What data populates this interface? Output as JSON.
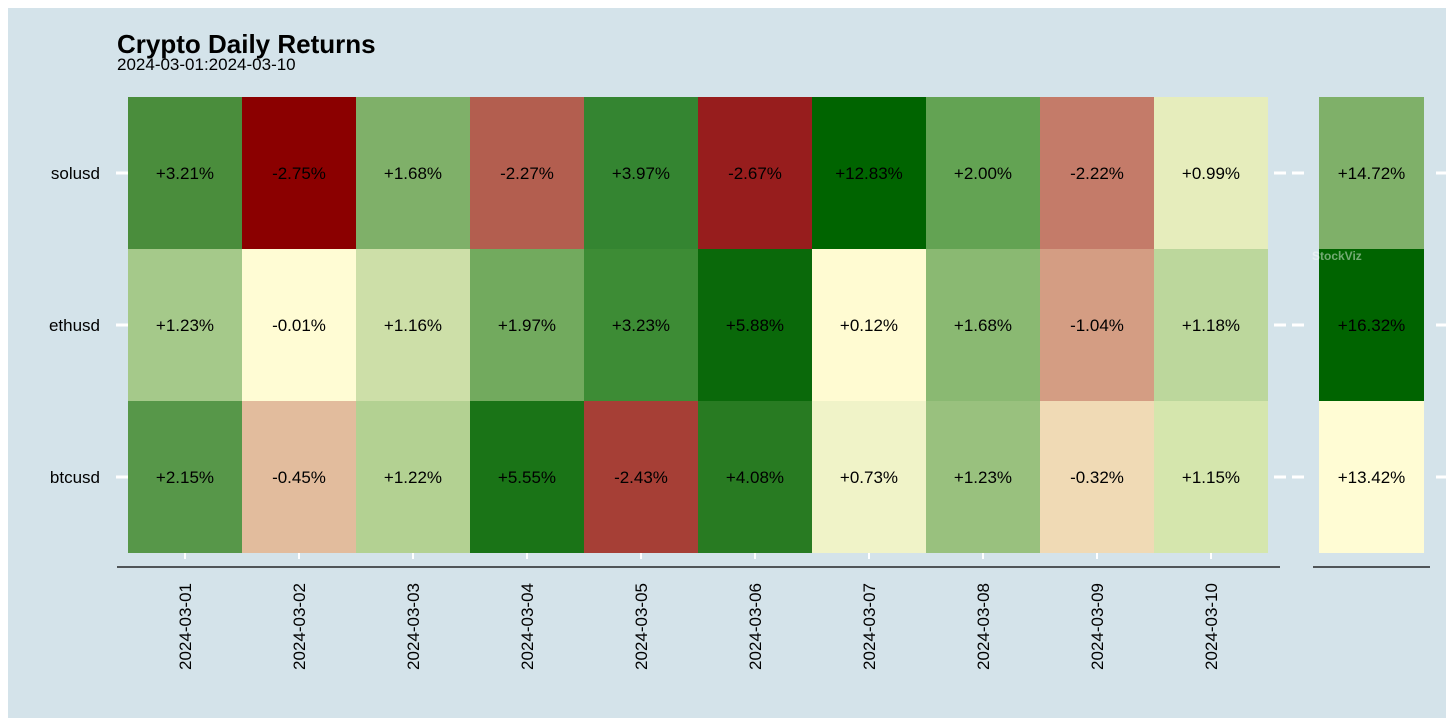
{
  "chart_data": {
    "type": "heatmap",
    "title": "Crypto Daily Returns",
    "subtitle": "2024-03-01:2024-03-10",
    "rows": [
      "solusd",
      "ethusd",
      "btcusd"
    ],
    "columns": [
      "2024-03-01",
      "2024-03-02",
      "2024-03-03",
      "2024-03-04",
      "2024-03-05",
      "2024-03-06",
      "2024-03-07",
      "2024-03-08",
      "2024-03-09",
      "2024-03-10"
    ],
    "values": [
      [
        3.21,
        -2.75,
        1.68,
        -2.27,
        3.97,
        -2.67,
        12.83,
        2.0,
        -2.22,
        0.99
      ],
      [
        1.23,
        -0.01,
        1.16,
        1.97,
        3.23,
        5.88,
        0.12,
        1.68,
        -1.04,
        1.18
      ],
      [
        2.15,
        -0.45,
        1.22,
        5.55,
        -2.43,
        4.08,
        0.73,
        1.23,
        -0.32,
        1.15
      ]
    ],
    "labels": [
      [
        "+3.21%",
        "-2.75%",
        "+1.68%",
        "-2.27%",
        "+3.97%",
        "-2.67%",
        "+12.83%",
        "+2.00%",
        "-2.22%",
        "+0.99%"
      ],
      [
        "+1.23%",
        "-0.01%",
        "+1.16%",
        "+1.97%",
        "+3.23%",
        "+5.88%",
        "+0.12%",
        "+1.68%",
        "-1.04%",
        "+1.18%"
      ],
      [
        "+2.15%",
        "-0.45%",
        "+1.22%",
        "+5.55%",
        "-2.43%",
        "+4.08%",
        "+0.73%",
        "+1.23%",
        "-0.32%",
        "+1.15%"
      ]
    ],
    "colors": [
      [
        "#4a8d3c",
        "#8b0000",
        "#7fb069",
        "#b35e4f",
        "#348531",
        "#971d1d",
        "#006400",
        "#63a353",
        "#c47b69",
        "#e6edbc"
      ],
      [
        "#a5c98a",
        "#fffcd4",
        "#cddfa8",
        "#72aa5e",
        "#3d8c35",
        "#0a690a",
        "#fffbd2",
        "#8ab972",
        "#d49d83",
        "#bcd79c"
      ],
      [
        "#579749",
        "#e2bc9d",
        "#b3d192",
        "#1a7417",
        "#a63f36",
        "#287b22",
        "#f0f3c8",
        "#99c17e",
        "#f0dab5",
        "#d5e6ad"
      ]
    ],
    "totals": {
      "values": [
        14.72,
        16.32,
        13.42
      ],
      "labels": [
        "+14.72%",
        "+16.32%",
        "+13.42%"
      ],
      "colors": [
        "#7fb069",
        "#006400",
        "#fffcd4"
      ]
    },
    "color_scale": {
      "negative": "#8b0000",
      "neutral": "#fffcd4",
      "positive": "#006400"
    },
    "watermark": "StockViz",
    "background": "#d4e3ea"
  }
}
